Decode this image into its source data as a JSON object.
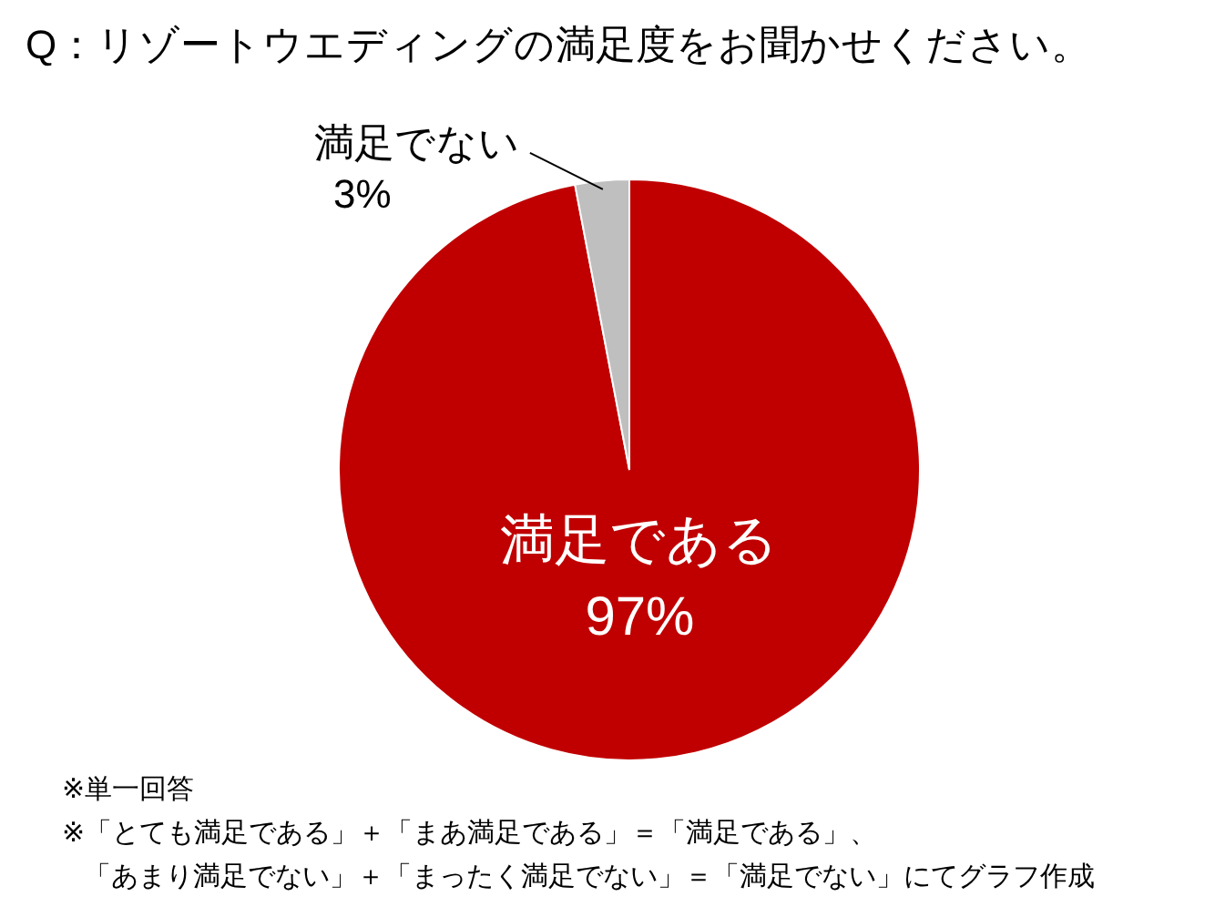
{
  "chart_data": {
    "type": "pie",
    "title": "Q：リゾートウエディングの満足度をお聞かせください。",
    "categories": [
      "満足である",
      "満足でない"
    ],
    "values": [
      97,
      3
    ],
    "value_labels": [
      "97%",
      "3%"
    ],
    "colors": [
      "#c00000",
      "#bfbfbf"
    ],
    "legend": false,
    "annotations": [
      "※単一回答",
      "※「とても満足である」＋「まあ満足である」＝「満足である」、",
      "「あまり満足でない」＋「まったく満足でない」＝「満足でない」にてグラフ作成"
    ]
  }
}
